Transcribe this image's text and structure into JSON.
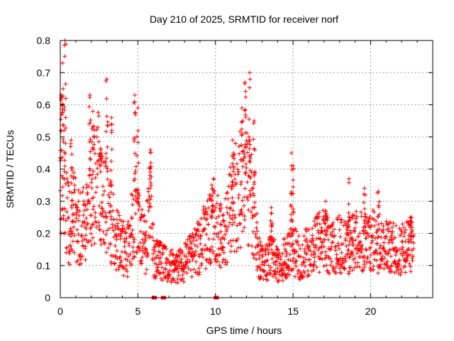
{
  "chart_data": {
    "type": "scatter",
    "title": "Day 210 of 2025, SRMTID for receiver norf",
    "xlabel": "GPS time / hours",
    "ylabel": "SRMTID / TECUs",
    "xlim": [
      0,
      24
    ],
    "ylim": [
      0,
      0.8
    ],
    "x_ticks": [
      0,
      5,
      10,
      15,
      20
    ],
    "x_tick_labels": [
      "0",
      "5",
      "10",
      "15",
      "20"
    ],
    "y_ticks": [
      0,
      0.1,
      0.2,
      0.3,
      0.4,
      0.5,
      0.6,
      0.7,
      0.8
    ],
    "y_tick_labels": [
      "0",
      "0.1",
      "0.2",
      "0.3",
      "0.4",
      "0.5",
      "0.6",
      "0.7",
      "0.8"
    ],
    "grid": true,
    "marker": "+",
    "color": "#ff0000",
    "series": [
      {
        "name": "SRMTID",
        "profile": [
          [
            0.0,
            0.3
          ],
          [
            0.2,
            0.42
          ],
          [
            0.4,
            0.27
          ],
          [
            0.6,
            0.22
          ],
          [
            0.8,
            0.26
          ],
          [
            1.0,
            0.24
          ],
          [
            1.2,
            0.21
          ],
          [
            1.5,
            0.23
          ],
          [
            1.8,
            0.26
          ],
          [
            2.0,
            0.3
          ],
          [
            2.3,
            0.36
          ],
          [
            2.5,
            0.38
          ],
          [
            2.7,
            0.33
          ],
          [
            3.0,
            0.28
          ],
          [
            3.3,
            0.23
          ],
          [
            3.6,
            0.19
          ],
          [
            4.0,
            0.16
          ],
          [
            4.3,
            0.13
          ],
          [
            4.6,
            0.22
          ],
          [
            4.9,
            0.28
          ],
          [
            5.1,
            0.2
          ],
          [
            5.5,
            0.16
          ],
          [
            5.8,
            0.3
          ],
          [
            6.0,
            0.13
          ],
          [
            6.5,
            0.11
          ],
          [
            7.0,
            0.1
          ],
          [
            7.5,
            0.09
          ],
          [
            8.0,
            0.11
          ],
          [
            8.5,
            0.13
          ],
          [
            9.0,
            0.16
          ],
          [
            9.5,
            0.21
          ],
          [
            10.0,
            0.25
          ],
          [
            10.3,
            0.19
          ],
          [
            10.7,
            0.22
          ],
          [
            11.0,
            0.28
          ],
          [
            11.5,
            0.33
          ],
          [
            11.9,
            0.38
          ],
          [
            12.2,
            0.32
          ],
          [
            12.5,
            0.26
          ],
          [
            12.8,
            0.12
          ],
          [
            13.2,
            0.11
          ],
          [
            13.6,
            0.13
          ],
          [
            14.0,
            0.11
          ],
          [
            14.5,
            0.12
          ],
          [
            15.0,
            0.15
          ],
          [
            15.5,
            0.12
          ],
          [
            16.0,
            0.15
          ],
          [
            16.5,
            0.17
          ],
          [
            17.0,
            0.18
          ],
          [
            17.5,
            0.15
          ],
          [
            18.0,
            0.17
          ],
          [
            18.5,
            0.15
          ],
          [
            19.0,
            0.18
          ],
          [
            19.5,
            0.17
          ],
          [
            20.0,
            0.18
          ],
          [
            20.5,
            0.17
          ],
          [
            21.0,
            0.16
          ],
          [
            21.5,
            0.15
          ],
          [
            22.0,
            0.15
          ],
          [
            22.5,
            0.17
          ],
          [
            22.8,
            0.16
          ]
        ],
        "peaks": [
          [
            0.05,
            0.63
          ],
          [
            0.15,
            0.73
          ],
          [
            0.3,
            0.8
          ],
          [
            0.7,
            0.49
          ],
          [
            1.9,
            0.63
          ],
          [
            2.1,
            0.58
          ],
          [
            2.6,
            0.46
          ],
          [
            3.0,
            0.68
          ],
          [
            3.3,
            0.56
          ],
          [
            4.8,
            0.63
          ],
          [
            5.0,
            0.59
          ],
          [
            5.8,
            0.46
          ],
          [
            9.8,
            0.34
          ],
          [
            11.1,
            0.49
          ],
          [
            11.7,
            0.59
          ],
          [
            11.9,
            0.67
          ],
          [
            12.2,
            0.7
          ],
          [
            12.5,
            0.55
          ],
          [
            13.6,
            0.28
          ],
          [
            14.9,
            0.45
          ],
          [
            15.0,
            0.41
          ],
          [
            17.1,
            0.3
          ],
          [
            18.6,
            0.37
          ],
          [
            19.6,
            0.34
          ],
          [
            20.5,
            0.33
          ],
          [
            22.6,
            0.25
          ]
        ],
        "zero_points": [
          6.0,
          6.1,
          6.6,
          6.7,
          10.0,
          10.1
        ]
      }
    ]
  }
}
